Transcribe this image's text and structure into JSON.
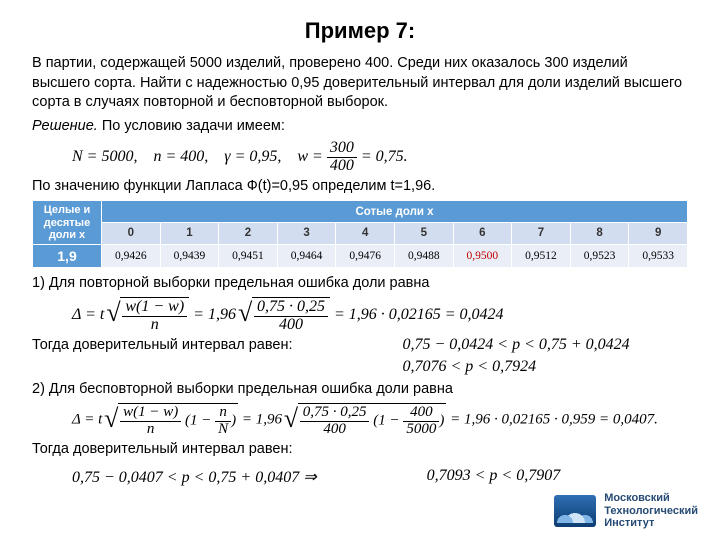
{
  "title": "Пример 7:",
  "problem": "В партии, содержащей 5000 изделий, проверено 400. Среди них оказалось 300 изделий высшего сорта. Найти с надежностью 0,95 доверительный интервал для доли изделий высшего сорта в случаях повторной и бесповторной выборок.",
  "solution_lead": "Решение.",
  "solution_cond": "По условию задачи имеем:",
  "given": {
    "N": "N = 5000,",
    "n": "n = 400,",
    "gamma": "γ = 0,95,",
    "w_lhs": "w =",
    "w_num": "300",
    "w_den": "400",
    "w_rhs": "= 0,75."
  },
  "laplace_line": "По значению функции Лапласа  Ф(t)=0,95 определим t=1,96.",
  "table": {
    "corner": "Целые и десятые доли x",
    "banner": "Сотые доли x",
    "cols": [
      "0",
      "1",
      "2",
      "3",
      "4",
      "5",
      "6",
      "7",
      "8",
      "9"
    ],
    "row_label": "1,9",
    "row": [
      "0,9426",
      "0,9439",
      "0,9451",
      "0,9464",
      "0,9476",
      "0,9488",
      "0,9500",
      "0,9512",
      "0,9523",
      "0,9533"
    ],
    "highlight_index": 6,
    "colors": {
      "header_bg": "#5b9bd5",
      "header_fg": "#ffffff",
      "colhdr_bg": "#d2deef",
      "cell_bg": "#eaeff7",
      "hot_fg": "#c00000",
      "border": "#ffffff"
    }
  },
  "case1": {
    "lead": "1) Для повторной выборки предельная ошибка доли равна",
    "delta_eq": "Δ = t",
    "frac_num": "w(1 − w)",
    "frac_den": "n",
    "num_eval": "0,75 · 0,25",
    "den_eval": "400",
    "calc_tail": "= 1,96 · 0,02165 = 0,0424",
    "t_val": "= 1,96",
    "ci_lead": "Тогда доверительный интервал равен:",
    "ci_a": "0,75 − 0,0424 < p < 0,75 + 0,0424",
    "ci_b": "0,7076 < p < 0,7924"
  },
  "case2": {
    "lead": "2) Для бесповторной выборки предельная ошибка доли равна",
    "delta_eq": "Δ = t",
    "frac_num": "w(1 − w)",
    "frac_den": "n",
    "corr_lhs": "1 −",
    "corr_num": "n",
    "corr_den": "N",
    "num_eval": "0,75 · 0,25",
    "den_eval": "400",
    "corr_num_eval": "400",
    "corr_den_eval": "5000",
    "t_val": "= 1,96",
    "calc_tail": "= 1,96 · 0,02165 · 0,959 = 0,0407.",
    "ci_lead": "Тогда доверительный интервал равен:",
    "ci_a": "0,75 − 0,0407 < p < 0,75 + 0,0407 ⇒",
    "ci_b": "0,7093 < p < 0,7907"
  },
  "logo": {
    "line1": "Московский",
    "line2": "Технологический",
    "line3": "Институт"
  }
}
